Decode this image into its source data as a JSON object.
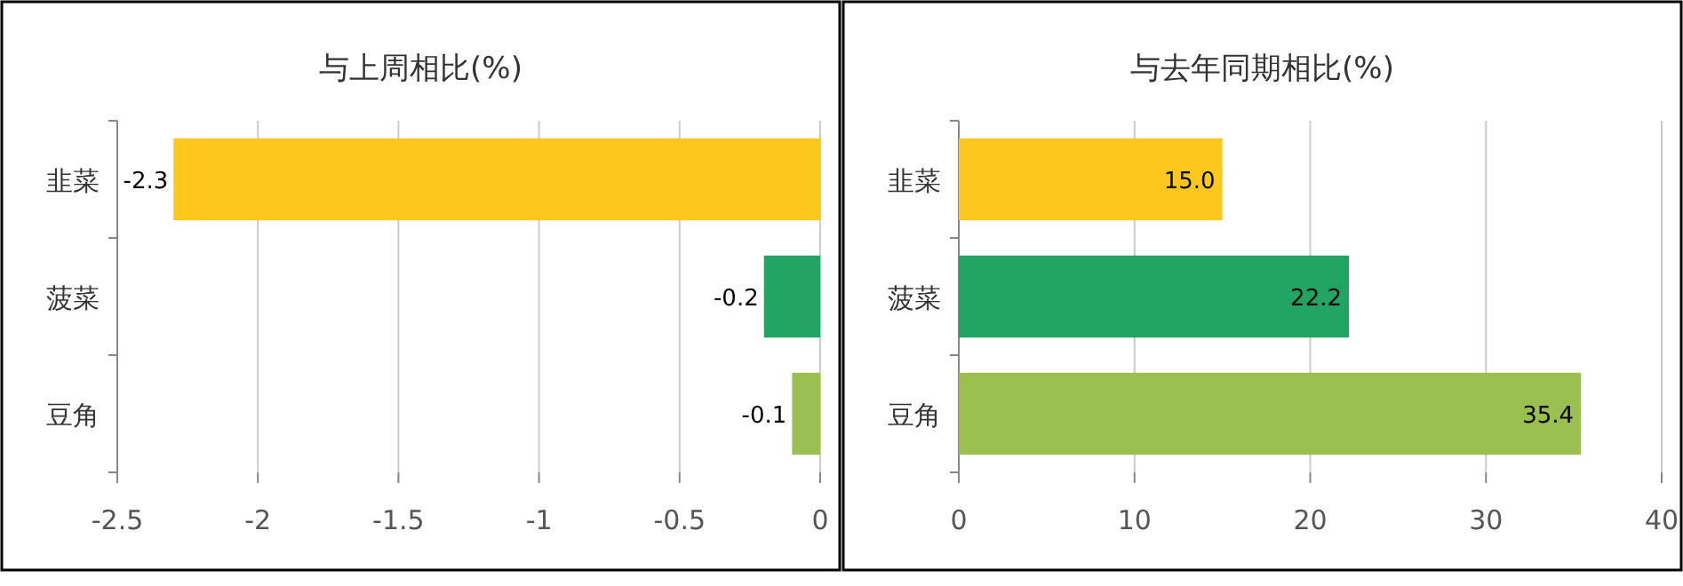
{
  "chart_data": [
    {
      "type": "bar",
      "orientation": "horizontal",
      "title": "与上周相比(%)",
      "categories": [
        "韭菜",
        "菠菜",
        "豆角"
      ],
      "values": [
        -2.3,
        -0.2,
        -0.1
      ],
      "colors": [
        "#fcc81d",
        "#22a463",
        "#9bc04f"
      ],
      "xlim": [
        -2.5,
        0
      ],
      "xticks": [
        -2.5,
        -2,
        -1.5,
        -1,
        -0.5,
        0
      ],
      "grid": "x",
      "data_labels": true
    },
    {
      "type": "bar",
      "orientation": "horizontal",
      "title": "与去年同期相比(%)",
      "categories": [
        "韭菜",
        "菠菜",
        "豆角"
      ],
      "values": [
        15.0,
        22.2,
        35.4
      ],
      "value_labels": [
        "15.0",
        "22.2",
        "35.4"
      ],
      "colors": [
        "#fcc81d",
        "#22a463",
        "#9bc04f"
      ],
      "xlim": [
        0,
        40
      ],
      "xticks": [
        0,
        10,
        20,
        30,
        40
      ],
      "grid": "x"
    }
  ]
}
